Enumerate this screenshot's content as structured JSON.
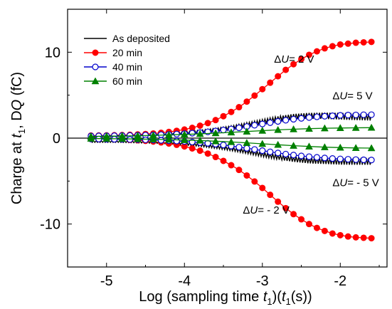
{
  "chart_data": {
    "type": "line",
    "xlabel": {
      "prefix": "Log (sampling time ",
      "var1": "t",
      "sub1": "1",
      "mid": ")(",
      "var2": "t",
      "sub2": "1",
      "suffix": "(s))"
    },
    "ylabel": {
      "prefix": "Charge at ",
      "var": "t",
      "sub": "1",
      "mid": ", D",
      "var2": "Q",
      "suffix": " (fC)"
    },
    "xlim": [
      -5.5,
      -1.4
    ],
    "ylim": [
      -15,
      15
    ],
    "xticks": [
      -5,
      -4,
      -3,
      -2
    ],
    "yticks": [
      -10,
      0,
      10
    ],
    "zero_line": true,
    "grid": false,
    "legend_position": "top-left",
    "colors": {
      "as_deposited": "#000000",
      "min20": "#ff0000",
      "min40": "#0000cc",
      "min60": "#008000"
    },
    "series": [
      {
        "name": "As deposited",
        "marker": "none",
        "branch": "+2 V",
        "x": [
          -5.2,
          -5.0,
          -4.8,
          -4.6,
          -4.4,
          -4.2,
          -4.0,
          -3.8,
          -3.6,
          -3.4,
          -3.2,
          -3.0,
          -2.8,
          -2.6,
          -2.4,
          -2.2,
          -2.0,
          -1.8,
          -1.6
        ],
        "y": [
          0.2,
          0.25,
          0.3,
          0.35,
          0.4,
          0.5,
          0.6,
          0.75,
          0.95,
          1.2,
          1.55,
          1.9,
          2.25,
          2.5,
          2.6,
          2.6,
          2.55,
          2.5,
          2.45
        ]
      },
      {
        "name": "As deposited",
        "marker": "none",
        "branch": "-2 V",
        "x": [
          -5.2,
          -5.0,
          -4.8,
          -4.6,
          -4.4,
          -4.2,
          -4.0,
          -3.8,
          -3.6,
          -3.4,
          -3.2,
          -3.0,
          -2.8,
          -2.6,
          -2.4,
          -2.2,
          -2.0,
          -1.8,
          -1.6
        ],
        "y": [
          -0.4,
          -0.4,
          -0.4,
          -0.45,
          -0.5,
          -0.55,
          -0.65,
          -0.8,
          -1.0,
          -1.25,
          -1.55,
          -1.9,
          -2.2,
          -2.45,
          -2.6,
          -2.65,
          -2.7,
          -2.7,
          -2.7
        ]
      },
      {
        "name": "20 min",
        "marker": "circle-filled",
        "annotation": "+2 V",
        "x": [
          -5.2,
          -5.1,
          -5.0,
          -4.9,
          -4.8,
          -4.7,
          -4.6,
          -4.5,
          -4.4,
          -4.3,
          -4.2,
          -4.1,
          -4.0,
          -3.9,
          -3.8,
          -3.7,
          -3.6,
          -3.5,
          -3.4,
          -3.3,
          -3.2,
          -3.1,
          -3.0,
          -2.9,
          -2.8,
          -2.7,
          -2.6,
          -2.5,
          -2.4,
          -2.3,
          -2.2,
          -2.1,
          -2.0,
          -1.9,
          -1.8,
          -1.7,
          -1.6
        ],
        "y": [
          0.3,
          0.31,
          0.32,
          0.34,
          0.36,
          0.39,
          0.43,
          0.48,
          0.54,
          0.62,
          0.72,
          0.85,
          1.0,
          1.2,
          1.45,
          1.75,
          2.1,
          2.55,
          3.05,
          3.6,
          4.25,
          4.95,
          5.7,
          6.45,
          7.2,
          7.95,
          8.6,
          9.2,
          9.7,
          10.1,
          10.45,
          10.7,
          10.9,
          11.0,
          11.1,
          11.15,
          11.2
        ]
      },
      {
        "name": "20 min",
        "marker": "circle-filled",
        "annotation": "-2 V",
        "x": [
          -5.2,
          -5.1,
          -5.0,
          -4.9,
          -4.8,
          -4.7,
          -4.6,
          -4.5,
          -4.4,
          -4.3,
          -4.2,
          -4.1,
          -4.0,
          -3.9,
          -3.8,
          -3.7,
          -3.6,
          -3.5,
          -3.4,
          -3.3,
          -3.2,
          -3.1,
          -3.0,
          -2.9,
          -2.8,
          -2.7,
          -2.6,
          -2.5,
          -2.4,
          -2.3,
          -2.2,
          -2.1,
          -2.0,
          -1.9,
          -1.8,
          -1.7,
          -1.6
        ],
        "y": [
          -0.1,
          -0.11,
          -0.12,
          -0.14,
          -0.16,
          -0.2,
          -0.25,
          -0.32,
          -0.4,
          -0.5,
          -0.63,
          -0.78,
          -0.97,
          -1.2,
          -1.47,
          -1.8,
          -2.2,
          -2.65,
          -3.15,
          -3.7,
          -4.35,
          -5.05,
          -5.8,
          -6.6,
          -7.4,
          -8.15,
          -8.85,
          -9.45,
          -10.0,
          -10.45,
          -10.8,
          -11.1,
          -11.3,
          -11.45,
          -11.55,
          -11.6,
          -11.65
        ]
      },
      {
        "name": "40 min",
        "marker": "circle-open",
        "annotation": "+5 V",
        "x": [
          -5.2,
          -5.1,
          -5.0,
          -4.9,
          -4.8,
          -4.7,
          -4.6,
          -4.5,
          -4.4,
          -4.3,
          -4.2,
          -4.1,
          -4.0,
          -3.9,
          -3.8,
          -3.7,
          -3.6,
          -3.5,
          -3.4,
          -3.3,
          -3.2,
          -3.1,
          -3.0,
          -2.9,
          -2.8,
          -2.7,
          -2.6,
          -2.5,
          -2.4,
          -2.3,
          -2.2,
          -2.1,
          -2.0,
          -1.9,
          -1.8,
          -1.7,
          -1.6
        ],
        "y": [
          0.25,
          0.26,
          0.27,
          0.28,
          0.3,
          0.31,
          0.33,
          0.35,
          0.37,
          0.4,
          0.43,
          0.47,
          0.52,
          0.58,
          0.65,
          0.73,
          0.83,
          0.94,
          1.06,
          1.2,
          1.35,
          1.5,
          1.65,
          1.8,
          1.95,
          2.08,
          2.2,
          2.3,
          2.4,
          2.48,
          2.55,
          2.6,
          2.65,
          2.68,
          2.7,
          2.72,
          2.73
        ]
      },
      {
        "name": "40 min",
        "marker": "circle-open",
        "annotation": "-5 V",
        "x": [
          -5.2,
          -5.1,
          -5.0,
          -4.9,
          -4.8,
          -4.7,
          -4.6,
          -4.5,
          -4.4,
          -4.3,
          -4.2,
          -4.1,
          -4.0,
          -3.9,
          -3.8,
          -3.7,
          -3.6,
          -3.5,
          -3.4,
          -3.3,
          -3.2,
          -3.1,
          -3.0,
          -2.9,
          -2.8,
          -2.7,
          -2.6,
          -2.5,
          -2.4,
          -2.3,
          -2.2,
          -2.1,
          -2.0,
          -1.9,
          -1.8,
          -1.7,
          -1.6
        ],
        "y": [
          -0.1,
          -0.11,
          -0.12,
          -0.13,
          -0.15,
          -0.16,
          -0.18,
          -0.2,
          -0.23,
          -0.26,
          -0.3,
          -0.34,
          -0.39,
          -0.45,
          -0.52,
          -0.6,
          -0.7,
          -0.8,
          -0.92,
          -1.05,
          -1.18,
          -1.32,
          -1.46,
          -1.6,
          -1.73,
          -1.86,
          -1.97,
          -2.07,
          -2.16,
          -2.24,
          -2.31,
          -2.37,
          -2.42,
          -2.46,
          -2.5,
          -2.53,
          -2.55
        ]
      },
      {
        "name": "60 min",
        "marker": "triangle-filled",
        "branch": "+",
        "x": [
          -5.2,
          -5.0,
          -4.8,
          -4.6,
          -4.4,
          -4.2,
          -4.0,
          -3.8,
          -3.6,
          -3.4,
          -3.2,
          -3.0,
          -2.8,
          -2.6,
          -2.4,
          -2.2,
          -2.0,
          -1.8,
          -1.6
        ],
        "y": [
          0.2,
          0.22,
          0.25,
          0.28,
          0.32,
          0.37,
          0.43,
          0.5,
          0.58,
          0.67,
          0.77,
          0.87,
          0.96,
          1.04,
          1.1,
          1.15,
          1.18,
          1.2,
          1.22
        ]
      },
      {
        "name": "60 min",
        "marker": "triangle-filled",
        "branch": "-",
        "x": [
          -5.2,
          -5.0,
          -4.8,
          -4.6,
          -4.4,
          -4.2,
          -4.0,
          -3.8,
          -3.6,
          -3.4,
          -3.2,
          -3.0,
          -2.8,
          -2.6,
          -2.4,
          -2.2,
          -2.0,
          -1.8,
          -1.6
        ],
        "y": [
          -0.05,
          -0.06,
          -0.08,
          -0.1,
          -0.13,
          -0.17,
          -0.22,
          -0.28,
          -0.36,
          -0.45,
          -0.55,
          -0.66,
          -0.77,
          -0.88,
          -0.97,
          -1.05,
          -1.1,
          -1.14,
          -1.16
        ]
      }
    ],
    "legend": [
      {
        "label": "As deposited",
        "key": "as_deposited",
        "marker": "none"
      },
      {
        "label": "20 min",
        "key": "min20",
        "marker": "circle-filled"
      },
      {
        "label": "40 min",
        "key": "min40",
        "marker": "circle-open"
      },
      {
        "label": "60 min",
        "key": "min60",
        "marker": "triangle-filled"
      }
    ],
    "annotations": [
      {
        "delta": "Δ",
        "var": "U",
        "value": "= 2 V",
        "x": -2.85,
        "y": 8.8
      },
      {
        "delta": "Δ",
        "var": "U",
        "value": "= 5 V",
        "x": -2.1,
        "y": 4.5
      },
      {
        "delta": "Δ",
        "var": "U",
        "value": "= - 5 V",
        "x": -2.1,
        "y": -5.6
      },
      {
        "delta": "Δ",
        "var": "U",
        "value": "= - 2 V",
        "x": -3.25,
        "y": -8.8
      }
    ]
  }
}
